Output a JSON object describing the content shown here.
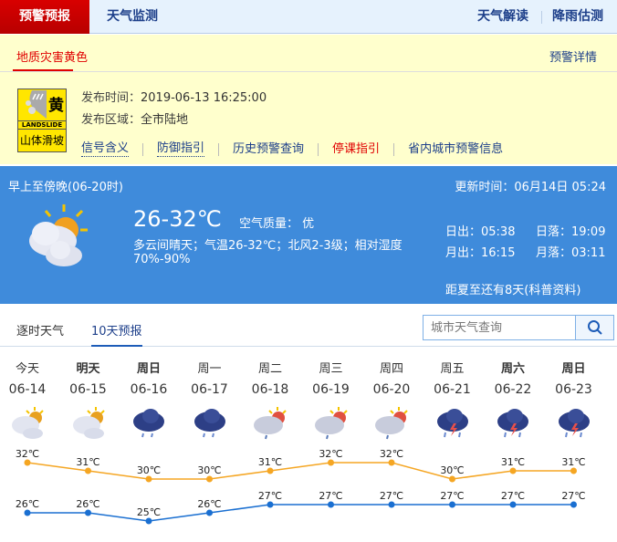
{
  "topbar": {
    "active": "预警预报",
    "tab1": "天气监测",
    "right1": "天气解读",
    "right2": "降雨估测"
  },
  "warning": {
    "subtab": "地质灾害黄色",
    "detail": "预警详情",
    "badge": {
      "level": "黄",
      "en": "LANDSLIDE",
      "cn": "山体滑坡",
      "color": "#ffe600"
    },
    "time_label": "发布时间：",
    "time": "2019-06-13 16:25:00",
    "area_label": "发布区域：",
    "area": "全市陆地",
    "links": [
      {
        "label": "信号含义"
      },
      {
        "label": "防御指引"
      },
      {
        "label": "历史预警查询"
      },
      {
        "label": "停课指引"
      },
      {
        "label": "省内城市预警信息"
      }
    ]
  },
  "now": {
    "period": "早上至傍晚(06-20时)",
    "update": "更新时间：06月14日 05:24",
    "icon": "cloudy-sun-icon",
    "temp": "26-32℃",
    "aqi": "空气质量： 优",
    "desc1": "多云间晴天；气温26-32℃；北风2-3级；相对湿度",
    "desc2": "70%-90%",
    "sunrise": "日出：05:38",
    "sunset": "日落：19:09",
    "moonrise": "月出：16:15",
    "moonset": "月落：03:11",
    "solstice": "距夏至还有8天(科普资料)",
    "bg": "#3f8bdb"
  },
  "tabs": {
    "hourly": "逐时天气",
    "tenday": "10天预报"
  },
  "search": {
    "placeholder": "城市天气查询"
  },
  "forecast": {
    "days": [
      {
        "week": "今天",
        "date": "06-14",
        "icon": "sun-cloud",
        "high": 32,
        "low": 26,
        "bold": false
      },
      {
        "week": "明天",
        "date": "06-15",
        "icon": "sun-cloud",
        "high": 31,
        "low": 26,
        "bold": true
      },
      {
        "week": "周日",
        "date": "06-16",
        "icon": "rain",
        "high": 30,
        "low": 25,
        "bold": true
      },
      {
        "week": "周一",
        "date": "06-17",
        "icon": "rain",
        "high": 30,
        "low": 26,
        "bold": false
      },
      {
        "week": "周二",
        "date": "06-18",
        "icon": "sun-cloud-rain",
        "high": 31,
        "low": 27,
        "bold": false
      },
      {
        "week": "周三",
        "date": "06-19",
        "icon": "sun-cloud-rain",
        "high": 32,
        "low": 27,
        "bold": false
      },
      {
        "week": "周四",
        "date": "06-20",
        "icon": "sun-cloud-rain",
        "high": 32,
        "low": 27,
        "bold": false
      },
      {
        "week": "周五",
        "date": "06-21",
        "icon": "thunderstorm",
        "high": 30,
        "low": 27,
        "bold": false
      },
      {
        "week": "周六",
        "date": "06-22",
        "icon": "thunderstorm",
        "high": 31,
        "low": 27,
        "bold": true
      },
      {
        "week": "周日",
        "date": "06-23",
        "icon": "thunderstorm",
        "high": 31,
        "low": 27,
        "bold": true
      }
    ],
    "unit": "℃",
    "high_color": "#f5a623",
    "low_color": "#1a6fd1"
  }
}
